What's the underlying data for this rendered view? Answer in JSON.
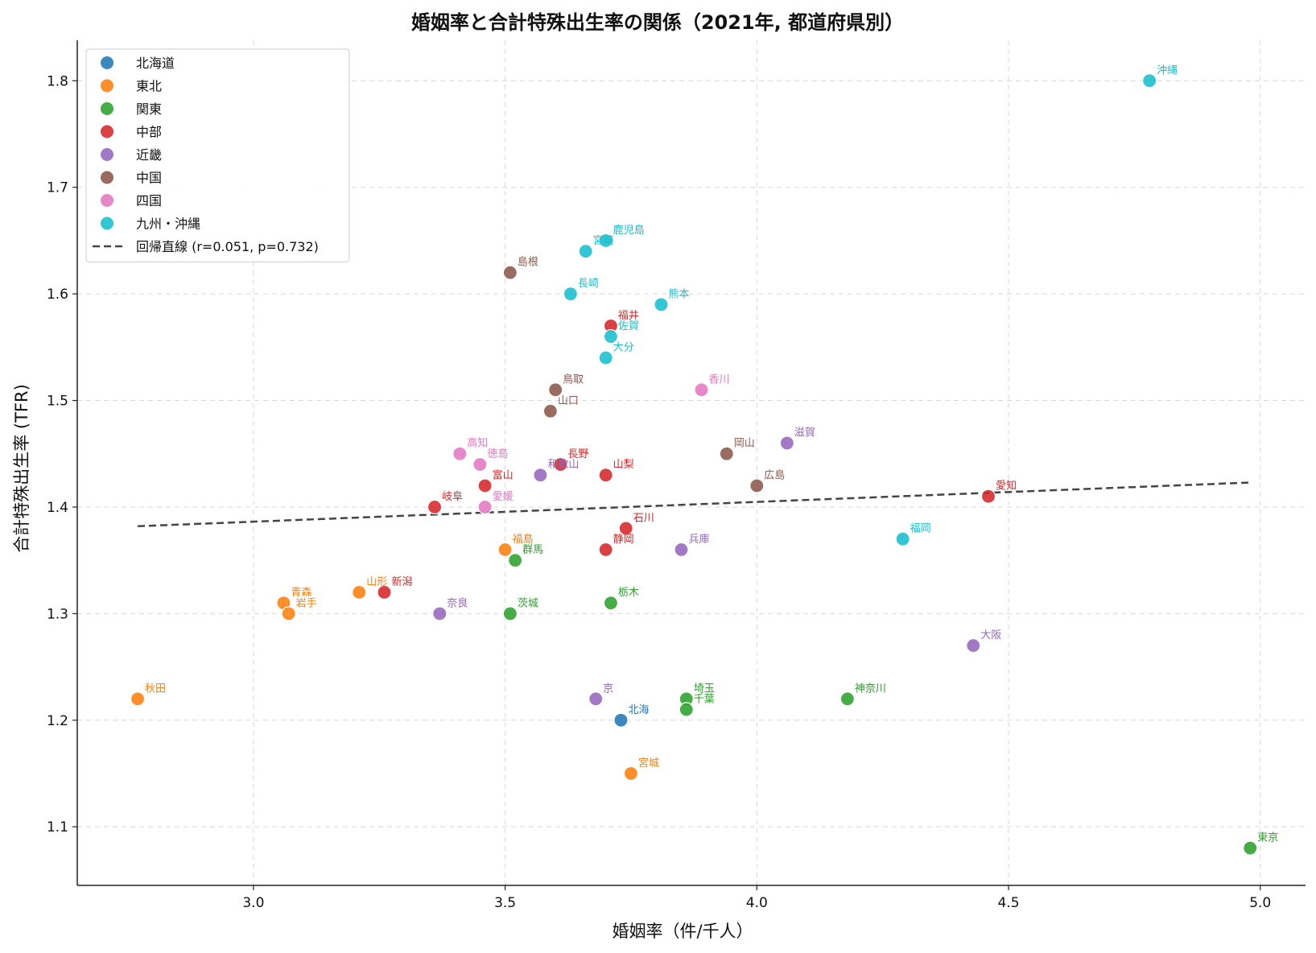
{
  "chart_data": {
    "type": "scatter",
    "title": "婚姻率と合計特殊出生率の関係（2021年, 都道府県別）",
    "xlabel": "婚姻率（件/千人）",
    "ylabel": "合計特殊出生率 (TFR)",
    "xlim": [
      2.65,
      5.09
    ],
    "ylim": [
      1.045,
      1.838
    ],
    "xticks": [
      "3.0",
      "3.5",
      "4.0",
      "4.5",
      "5.0"
    ],
    "yticks": [
      "1.1",
      "1.2",
      "1.3",
      "1.4",
      "1.5",
      "1.6",
      "1.7",
      "1.8"
    ],
    "grid": true,
    "legend_position": "top-left",
    "regions": [
      {
        "name": "北海道",
        "color": "#1f77b4"
      },
      {
        "name": "東北",
        "color": "#ff7f0e"
      },
      {
        "name": "関東",
        "color": "#2ca02c"
      },
      {
        "name": "中部",
        "color": "#d62728"
      },
      {
        "name": "近畿",
        "color": "#9467bd"
      },
      {
        "name": "中国",
        "color": "#8c564b"
      },
      {
        "name": "四国",
        "color": "#e377c2"
      },
      {
        "name": "九州・沖縄",
        "color": "#17becf"
      }
    ],
    "regression": {
      "label": "回帰直線 (r=0.051, p=0.732)",
      "x": [
        2.77,
        4.98
      ],
      "y": [
        1.382,
        1.423
      ]
    },
    "points": [
      {
        "label": "北海",
        "region": "北海道",
        "x": 3.73,
        "y": 1.2
      },
      {
        "label": "青森",
        "region": "東北",
        "x": 3.06,
        "y": 1.31
      },
      {
        "label": "岩手",
        "region": "東北",
        "x": 3.07,
        "y": 1.3
      },
      {
        "label": "宮城",
        "region": "東北",
        "x": 3.75,
        "y": 1.15
      },
      {
        "label": "秋田",
        "region": "東北",
        "x": 2.77,
        "y": 1.22
      },
      {
        "label": "山形",
        "region": "東北",
        "x": 3.21,
        "y": 1.32
      },
      {
        "label": "福島",
        "region": "東北",
        "x": 3.5,
        "y": 1.36
      },
      {
        "label": "茨城",
        "region": "関東",
        "x": 3.51,
        "y": 1.3
      },
      {
        "label": "栃木",
        "region": "関東",
        "x": 3.71,
        "y": 1.31
      },
      {
        "label": "群馬",
        "region": "関東",
        "x": 3.52,
        "y": 1.35
      },
      {
        "label": "埼玉",
        "region": "関東",
        "x": 3.86,
        "y": 1.22
      },
      {
        "label": "千葉",
        "region": "関東",
        "x": 3.86,
        "y": 1.21
      },
      {
        "label": "東京",
        "region": "関東",
        "x": 4.98,
        "y": 1.08
      },
      {
        "label": "神奈川",
        "region": "関東",
        "x": 4.18,
        "y": 1.22
      },
      {
        "label": "新潟",
        "region": "中部",
        "x": 3.26,
        "y": 1.32
      },
      {
        "label": "富山",
        "region": "中部",
        "x": 3.46,
        "y": 1.42
      },
      {
        "label": "石川",
        "region": "中部",
        "x": 3.74,
        "y": 1.38
      },
      {
        "label": "福井",
        "region": "中部",
        "x": 3.71,
        "y": 1.57
      },
      {
        "label": "山梨",
        "region": "中部",
        "x": 3.7,
        "y": 1.43
      },
      {
        "label": "長野",
        "region": "中部",
        "x": 3.61,
        "y": 1.44
      },
      {
        "label": "岐阜",
        "region": "中部",
        "x": 3.36,
        "y": 1.4
      },
      {
        "label": "静岡",
        "region": "中部",
        "x": 3.7,
        "y": 1.36
      },
      {
        "label": "愛知",
        "region": "中部",
        "x": 4.46,
        "y": 1.41
      },
      {
        "label": "滋賀",
        "region": "近畿",
        "x": 4.06,
        "y": 1.46
      },
      {
        "label": "京",
        "region": "近畿",
        "x": 3.68,
        "y": 1.22
      },
      {
        "label": "大阪",
        "region": "近畿",
        "x": 4.43,
        "y": 1.27
      },
      {
        "label": "兵庫",
        "region": "近畿",
        "x": 3.85,
        "y": 1.36
      },
      {
        "label": "奈良",
        "region": "近畿",
        "x": 3.37,
        "y": 1.3
      },
      {
        "label": "和歌山",
        "region": "近畿",
        "x": 3.57,
        "y": 1.43
      },
      {
        "label": "鳥取",
        "region": "中国",
        "x": 3.6,
        "y": 1.51
      },
      {
        "label": "島根",
        "region": "中国",
        "x": 3.51,
        "y": 1.62
      },
      {
        "label": "岡山",
        "region": "中国",
        "x": 3.94,
        "y": 1.45
      },
      {
        "label": "広島",
        "region": "中国",
        "x": 4.0,
        "y": 1.42
      },
      {
        "label": "山口",
        "region": "中国",
        "x": 3.59,
        "y": 1.49
      },
      {
        "label": "徳島",
        "region": "四国",
        "x": 3.45,
        "y": 1.44
      },
      {
        "label": "香川",
        "region": "四国",
        "x": 3.89,
        "y": 1.51
      },
      {
        "label": "愛媛",
        "region": "四国",
        "x": 3.46,
        "y": 1.4
      },
      {
        "label": "高知",
        "region": "四国",
        "x": 3.41,
        "y": 1.45
      },
      {
        "label": "福岡",
        "region": "九州・沖縄",
        "x": 4.29,
        "y": 1.37
      },
      {
        "label": "佐賀",
        "region": "九州・沖縄",
        "x": 3.71,
        "y": 1.56
      },
      {
        "label": "長崎",
        "region": "九州・沖縄",
        "x": 3.63,
        "y": 1.6
      },
      {
        "label": "熊本",
        "region": "九州・沖縄",
        "x": 3.81,
        "y": 1.59
      },
      {
        "label": "大分",
        "region": "九州・沖縄",
        "x": 3.7,
        "y": 1.54
      },
      {
        "label": "宮崎",
        "region": "九州・沖縄",
        "x": 3.66,
        "y": 1.64
      },
      {
        "label": "鹿児島",
        "region": "九州・沖縄",
        "x": 3.7,
        "y": 1.65
      },
      {
        "label": "沖縄",
        "region": "九州・沖縄",
        "x": 4.78,
        "y": 1.8
      }
    ]
  }
}
